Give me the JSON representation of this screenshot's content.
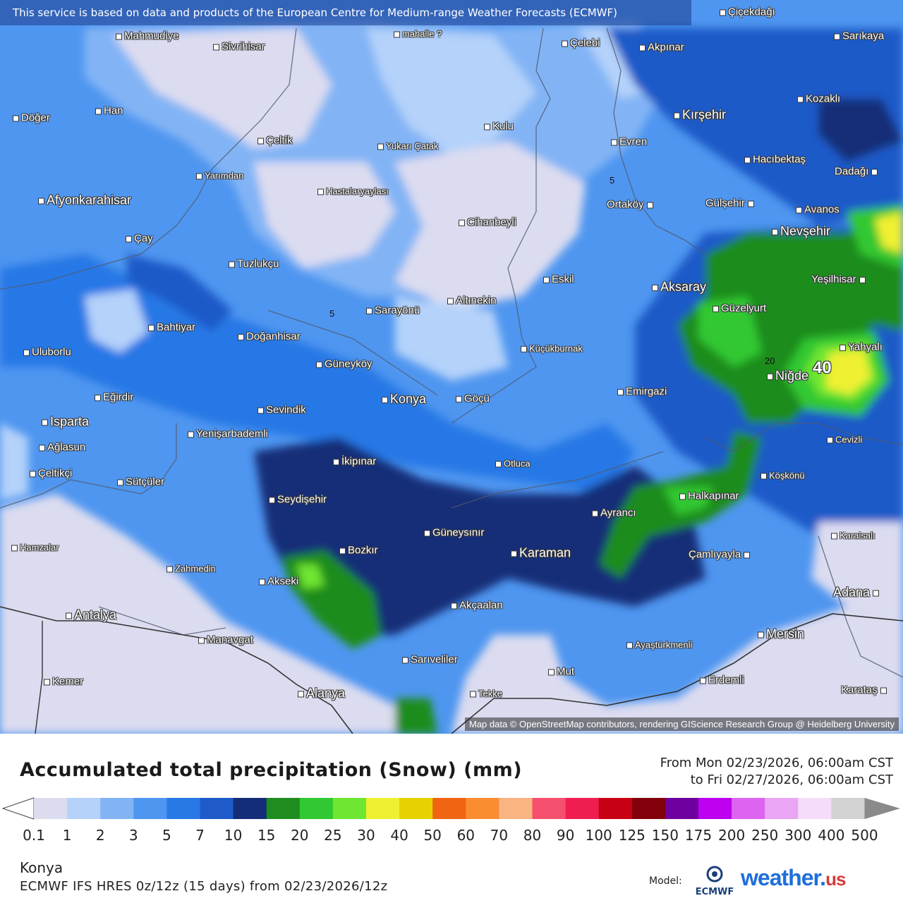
{
  "banner": "This service is based on data and products of the European Centre for Medium-range Weather Forecasts (ECMWF)",
  "attribution": "Map data © OpenStreetMap contributors, rendering GIScience Research Group @ Heidelberg University",
  "map": {
    "cities": [
      {
        "name": "Mahmudiye",
        "size": "md"
      },
      {
        "name": "Sivrihisar",
        "size": "md"
      },
      {
        "name": "mahalle ?",
        "size": "sm"
      },
      {
        "name": "Çelebi",
        "size": "md"
      },
      {
        "name": "Akpınar",
        "size": "md"
      },
      {
        "name": "Çiçekdağı",
        "size": "md"
      },
      {
        "name": "Sarıkaya",
        "size": "md"
      },
      {
        "name": "Kozaklı",
        "size": "md"
      },
      {
        "name": "Döğer",
        "size": "md"
      },
      {
        "name": "Han",
        "size": "md"
      },
      {
        "name": "Kırşehir",
        "size": "lg"
      },
      {
        "name": "Kulu",
        "size": "md"
      },
      {
        "name": "Çeltik",
        "size": "md"
      },
      {
        "name": "Yukarı Çatak",
        "size": "sm"
      },
      {
        "name": "Evren",
        "size": "md"
      },
      {
        "name": "Hacıbektaş",
        "size": "md"
      },
      {
        "name": "Dadağı",
        "size": "md"
      },
      {
        "name": "Yarımdan",
        "size": "sm"
      },
      {
        "name": "Hastalaryaylası",
        "size": "sm"
      },
      {
        "name": "Afyonkarahisar",
        "size": "lg"
      },
      {
        "name": "Ortaköy",
        "size": "md"
      },
      {
        "name": "Gülşehir",
        "size": "md"
      },
      {
        "name": "Avanos",
        "size": "md"
      },
      {
        "name": "Cihanbeyli",
        "size": "md"
      },
      {
        "name": "Nevşehir",
        "size": "lg"
      },
      {
        "name": "Çay",
        "size": "md"
      },
      {
        "name": "Tuzlukçu",
        "size": "md"
      },
      {
        "name": "Eskil",
        "size": "md"
      },
      {
        "name": "Aksaray",
        "size": "lg"
      },
      {
        "name": "Yeşilhisar",
        "size": "md"
      },
      {
        "name": "Altınekin",
        "size": "md"
      },
      {
        "name": "Sarayönü",
        "size": "md"
      },
      {
        "name": "Güzelyurt",
        "size": "md"
      },
      {
        "name": "Bahtiyar",
        "size": "md"
      },
      {
        "name": "Doğanhisar",
        "size": "md"
      },
      {
        "name": "Uluborlu",
        "size": "md"
      },
      {
        "name": "Küçükburnak",
        "size": "sm"
      },
      {
        "name": "Yahyalı",
        "size": "md"
      },
      {
        "name": "Güneyköy",
        "size": "md"
      },
      {
        "name": "Niğde",
        "size": "lg"
      },
      {
        "name": "Emirgazi",
        "size": "md"
      },
      {
        "name": "Eğirdir",
        "size": "md"
      },
      {
        "name": "Konya",
        "size": "lg"
      },
      {
        "name": "Göçü",
        "size": "md"
      },
      {
        "name": "Sevindik",
        "size": "md"
      },
      {
        "name": "Isparta",
        "size": "lg"
      },
      {
        "name": "Yenişarbademli",
        "size": "md"
      },
      {
        "name": "Cevizli",
        "size": "sm"
      },
      {
        "name": "Ağlasun",
        "size": "md"
      },
      {
        "name": "İkipınar",
        "size": "md"
      },
      {
        "name": "Otluca",
        "size": "sm"
      },
      {
        "name": "Çeltikçi",
        "size": "md"
      },
      {
        "name": "Köşkönü",
        "size": "sm"
      },
      {
        "name": "Sütçüler",
        "size": "md"
      },
      {
        "name": "Halkapınar",
        "size": "md"
      },
      {
        "name": "Seydişehir",
        "size": "md"
      },
      {
        "name": "Ayrancı",
        "size": "md"
      },
      {
        "name": "Güneysınır",
        "size": "md"
      },
      {
        "name": "Karaisalı",
        "size": "sm"
      },
      {
        "name": "Hamzalar",
        "size": "sm"
      },
      {
        "name": "Bozkır",
        "size": "md"
      },
      {
        "name": "Karaman",
        "size": "lg"
      },
      {
        "name": "Çamlıyayla",
        "size": "md"
      },
      {
        "name": "Zahmedin",
        "size": "sm"
      },
      {
        "name": "Akseki",
        "size": "md"
      },
      {
        "name": "Adana",
        "size": "lg"
      },
      {
        "name": "Akçaalan",
        "size": "md"
      },
      {
        "name": "Antalya",
        "size": "lg"
      },
      {
        "name": "Mersin",
        "size": "lg"
      },
      {
        "name": "Manavgat",
        "size": "md"
      },
      {
        "name": "Ayaştürkmenli",
        "size": "sm"
      },
      {
        "name": "Sarıveliler",
        "size": "md"
      },
      {
        "name": "Mut",
        "size": "md"
      },
      {
        "name": "Erdemli",
        "size": "md"
      },
      {
        "name": "Kemer",
        "size": "md"
      },
      {
        "name": "Alanya",
        "size": "lg"
      },
      {
        "name": "Tekke",
        "size": "sm"
      },
      {
        "name": "Karataş",
        "size": "md"
      }
    ],
    "contour_labels": [
      "5",
      "5",
      "20"
    ],
    "max_label": "40"
  },
  "legend": {
    "title": "Accumulated total precipitation (Snow) (mm)",
    "range_from": "From Mon 02/23/2026, 06:00am CST",
    "range_to": "to Fri 02/27/2026, 06:00am CST",
    "ticks": [
      "0.1",
      "1",
      "2",
      "3",
      "5",
      "7",
      "10",
      "15",
      "20",
      "25",
      "30",
      "40",
      "50",
      "60",
      "70",
      "80",
      "90",
      "100",
      "125",
      "150",
      "175",
      "200",
      "250",
      "300",
      "400",
      "500"
    ],
    "colors": [
      "#dcdcf0",
      "#b4d2fa",
      "#82b4f5",
      "#4f96f0",
      "#2878e6",
      "#1e5ac8",
      "#142d78",
      "#1e8c1e",
      "#32c832",
      "#6ee632",
      "#f0f032",
      "#e6d200",
      "#f06414",
      "#fa8c32",
      "#fab482",
      "#f5506e",
      "#f01e50",
      "#c80014",
      "#82000a",
      "#6e00a0",
      "#be00f0",
      "#dc64f0",
      "#eba5f5",
      "#f5dcfa",
      "#d2d2d2"
    ]
  },
  "location": "Konya",
  "run_info": "ECMWF IFS HRES 0z/12z (15 days) from 02/23/2026/12z",
  "model": {
    "label": "Model:",
    "ecmwf_text": "ECMWF",
    "brand_main": "weather.",
    "brand_tld": "us"
  }
}
